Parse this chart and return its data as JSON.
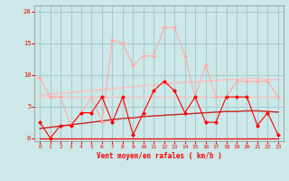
{
  "x": [
    0,
    1,
    2,
    3,
    4,
    5,
    6,
    7,
    8,
    9,
    10,
    11,
    12,
    13,
    14,
    15,
    16,
    17,
    18,
    19,
    20,
    21,
    22,
    23
  ],
  "line_gust": [
    9.5,
    6.5,
    6.5,
    2.0,
    4.0,
    6.5,
    2.5,
    15.5,
    15.0,
    11.5,
    13.0,
    13.0,
    17.5,
    17.5,
    13.0,
    6.5,
    11.5,
    6.5,
    6.5,
    9.0,
    9.0,
    9.0,
    9.0,
    6.5
  ],
  "line_mean": [
    2.5,
    0.0,
    2.0,
    2.0,
    4.0,
    4.0,
    6.5,
    2.5,
    6.5,
    0.5,
    4.0,
    7.5,
    9.0,
    7.5,
    4.0,
    6.5,
    2.5,
    2.5,
    6.5,
    6.5,
    6.5,
    2.0,
    4.0,
    0.5
  ],
  "line_trend_gust": [
    6.8,
    6.9,
    7.1,
    7.2,
    7.4,
    7.5,
    7.7,
    7.8,
    8.0,
    8.1,
    8.3,
    8.4,
    8.5,
    8.7,
    8.8,
    8.9,
    9.0,
    9.1,
    9.2,
    9.3,
    9.4,
    9.4,
    9.3,
    9.2
  ],
  "line_trend_mean": [
    1.5,
    1.7,
    1.9,
    2.1,
    2.3,
    2.5,
    2.7,
    2.9,
    3.1,
    3.2,
    3.4,
    3.5,
    3.6,
    3.7,
    3.8,
    3.9,
    4.0,
    4.1,
    4.2,
    4.2,
    4.3,
    4.3,
    4.2,
    4.1
  ],
  "line_flat_gust": [
    6.5,
    6.5,
    6.5,
    6.5,
    6.5,
    6.5,
    6.5,
    6.5,
    6.5,
    6.5,
    6.5,
    6.5,
    6.5,
    6.5,
    6.5,
    6.5,
    6.5,
    6.5,
    6.5,
    6.5,
    6.5,
    6.5,
    6.5,
    6.5
  ],
  "line_flat_mean": [
    0.0,
    0.0,
    0.0,
    0.0,
    0.0,
    0.0,
    0.0,
    0.0,
    0.0,
    0.0,
    0.0,
    0.0,
    0.0,
    0.0,
    0.0,
    0.0,
    0.0,
    0.0,
    0.0,
    0.0,
    0.0,
    0.0,
    0.0,
    0.0
  ],
  "color_gust_line": "#ffaaaa",
  "color_mean_line": "#ff0000",
  "color_trend_gust": "#ffbbbb",
  "color_trend_mean": "#cc2222",
  "color_flat_gust": "#ffbbbb",
  "color_flat_mean": "#ff0000",
  "bg_color": "#cce8e8",
  "grid_color": "#aacccc",
  "text_color": "#ff0000",
  "xlabel": "Vent moyen/en rafales ( km/h )",
  "ylim": [
    -0.5,
    21
  ],
  "xlim": [
    -0.5,
    23.5
  ],
  "yticks": [
    0,
    5,
    10,
    15,
    20
  ],
  "xticks": [
    0,
    1,
    2,
    3,
    4,
    5,
    6,
    7,
    8,
    9,
    10,
    11,
    12,
    13,
    14,
    15,
    16,
    17,
    18,
    19,
    20,
    21,
    22,
    23
  ],
  "wind_arrows": [
    "→",
    "↘",
    "↑",
    "↖",
    "↙",
    "↘↘",
    "↙",
    "↙",
    "↙",
    "←",
    "↙",
    "↙",
    "↓",
    "↙",
    "↙",
    "↗",
    "↗",
    "→",
    "↘"
  ]
}
